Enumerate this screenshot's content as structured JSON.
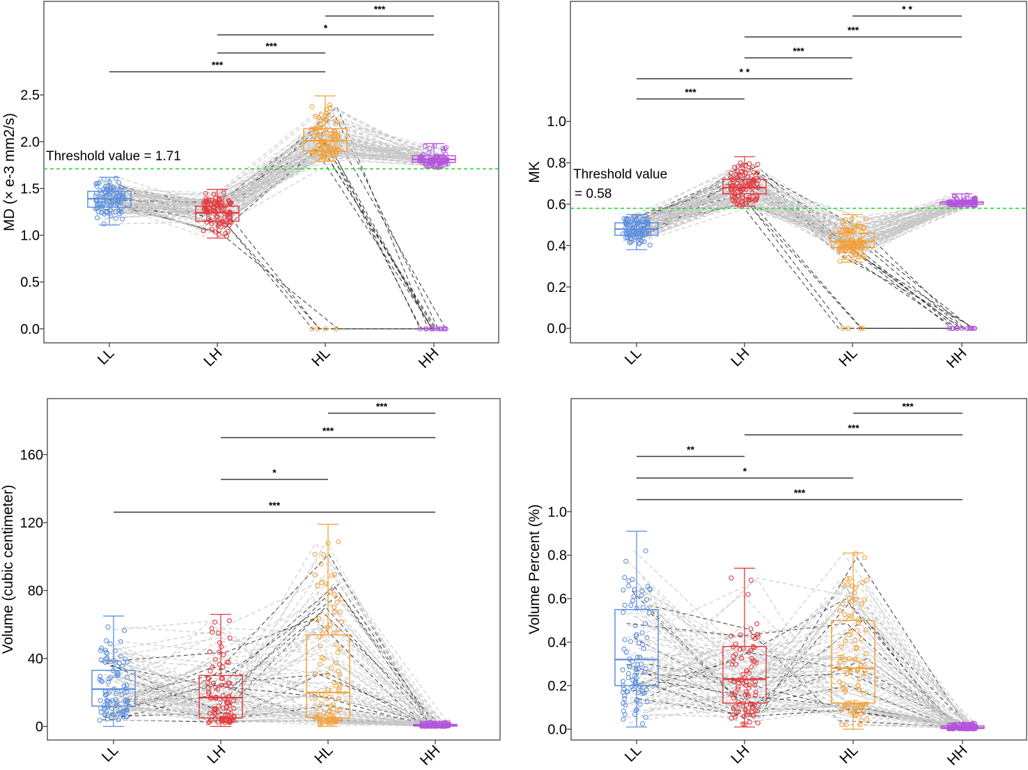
{
  "figure": {
    "description_type": "four-panel paired boxplot figure"
  },
  "colors": {
    "LL": "#5b8fe0",
    "LH": "#e5373c",
    "HL": "#f5a033",
    "HH": "#b455dc",
    "threshold": "#22dd22",
    "grey_line": "#c8c8c8",
    "dark_line": "#222222"
  },
  "chart_data": [
    {
      "id": "md",
      "type": "box",
      "ylabel": "MD (× e-3 mm2/s)",
      "ylim": [
        -0.15,
        3.5
      ],
      "yticks": [
        "0.0",
        "0.5",
        "1.0",
        "1.5",
        "2.0",
        "2.5"
      ],
      "ytick_values": [
        0,
        0.5,
        1.0,
        1.5,
        2.0,
        2.5
      ],
      "categories": [
        "LL",
        "LH",
        "HL",
        "HH"
      ],
      "boxes": [
        {
          "group": "LL",
          "min": 1.11,
          "q1": 1.3,
          "median": 1.39,
          "q3": 1.47,
          "max": 1.62
        },
        {
          "group": "LH",
          "min": 0.97,
          "q1": 1.15,
          "median": 1.24,
          "q3": 1.31,
          "max": 1.49
        },
        {
          "group": "HL",
          "min": 1.79,
          "q1": 1.9,
          "median": 2.01,
          "q3": 2.14,
          "max": 2.49
        },
        {
          "group": "HH",
          "min": 1.72,
          "q1": 1.78,
          "median": 1.81,
          "q3": 1.85,
          "max": 1.98
        }
      ],
      "threshold": {
        "value": 1.71,
        "label_lines": [
          "Threshold value = 1.71"
        ]
      },
      "significance": [
        {
          "from": "LL",
          "to": "HL",
          "label": "***"
        },
        {
          "from": "LH",
          "to": "HL",
          "label": "***"
        },
        {
          "from": "LH",
          "to": "HH",
          "label": "*"
        },
        {
          "from": "HL",
          "to": "HH",
          "label": "***"
        }
      ]
    },
    {
      "id": "mk",
      "type": "box",
      "ylabel": "MK",
      "ylim": [
        -0.07,
        1.58
      ],
      "yticks": [
        "0.0",
        "0.2",
        "0.4",
        "0.6",
        "0.8",
        "1.0"
      ],
      "ytick_values": [
        0,
        0.2,
        0.4,
        0.6,
        0.8,
        1.0
      ],
      "categories": [
        "LL",
        "LH",
        "HL",
        "HH"
      ],
      "boxes": [
        {
          "group": "LL",
          "min": 0.38,
          "q1": 0.45,
          "median": 0.48,
          "q3": 0.51,
          "max": 0.55
        },
        {
          "group": "LH",
          "min": 0.59,
          "q1": 0.65,
          "median": 0.68,
          "q3": 0.72,
          "max": 0.83
        },
        {
          "group": "HL",
          "min": 0.32,
          "q1": 0.39,
          "median": 0.42,
          "q3": 0.46,
          "max": 0.55
        },
        {
          "group": "HH",
          "min": 0.59,
          "q1": 0.6,
          "median": 0.61,
          "q3": 0.61,
          "max": 0.65
        }
      ],
      "threshold": {
        "value": 0.58,
        "label_lines": [
          "Threshold value",
          " = 0.58"
        ]
      },
      "significance": [
        {
          "from": "LL",
          "to": "LH",
          "label": "***"
        },
        {
          "from": "LL",
          "to": "HL",
          "label": "* *"
        },
        {
          "from": "LH",
          "to": "HL",
          "label": "***"
        },
        {
          "from": "LH",
          "to": "HH",
          "label": "***"
        },
        {
          "from": "HL",
          "to": "HH",
          "label": "* *"
        }
      ]
    },
    {
      "id": "vol",
      "type": "box",
      "ylabel": "Volume (cubic centimeter)",
      "ylim": [
        -8,
        193
      ],
      "yticks": [
        "0",
        "40",
        "80",
        "120",
        "160"
      ],
      "ytick_values": [
        0,
        40,
        80,
        120,
        160
      ],
      "categories": [
        "LL",
        "LH",
        "HL",
        "HH"
      ],
      "boxes": [
        {
          "group": "LL",
          "min": 0,
          "q1": 12,
          "median": 22,
          "q3": 33,
          "max": 65
        },
        {
          "group": "LH",
          "min": 0,
          "q1": 5,
          "median": 17,
          "q3": 30,
          "max": 66
        },
        {
          "group": "HL",
          "min": 0,
          "q1": 5,
          "median": 20,
          "q3": 54,
          "max": 119
        },
        {
          "group": "HH",
          "min": 0,
          "q1": 0.2,
          "median": 0.5,
          "q3": 1.2,
          "max": 3
        }
      ],
      "threshold": null,
      "significance": [
        {
          "from": "LL",
          "to": "HH",
          "label": "***"
        },
        {
          "from": "LH",
          "to": "HL",
          "label": "*"
        },
        {
          "from": "LH",
          "to": "HH",
          "label": "***"
        },
        {
          "from": "HL",
          "to": "HH",
          "label": "***"
        }
      ]
    },
    {
      "id": "vpct",
      "type": "box",
      "ylabel": "Volume Percent (%)",
      "ylim": [
        -0.05,
        1.52
      ],
      "yticks": [
        "0.0",
        "0.2",
        "0.4",
        "0.6",
        "0.8",
        "1.0"
      ],
      "ytick_values": [
        0,
        0.2,
        0.4,
        0.6,
        0.8,
        1.0
      ],
      "categories": [
        "LL",
        "LH",
        "HL",
        "HH"
      ],
      "boxes": [
        {
          "group": "LL",
          "min": 0.01,
          "q1": 0.2,
          "median": 0.32,
          "q3": 0.55,
          "max": 0.91
        },
        {
          "group": "LH",
          "min": 0.01,
          "q1": 0.12,
          "median": 0.23,
          "q3": 0.38,
          "max": 0.74
        },
        {
          "group": "HL",
          "min": 0.0,
          "q1": 0.12,
          "median": 0.28,
          "q3": 0.5,
          "max": 0.81
        },
        {
          "group": "HH",
          "min": 0.0,
          "q1": 0.003,
          "median": 0.006,
          "q3": 0.015,
          "max": 0.03
        }
      ],
      "threshold": null,
      "significance": [
        {
          "from": "LL",
          "to": "LH",
          "label": "**"
        },
        {
          "from": "LL",
          "to": "HL",
          "label": "*"
        },
        {
          "from": "LL",
          "to": "HH",
          "label": "***"
        },
        {
          "from": "LH",
          "to": "HH",
          "label": "***"
        },
        {
          "from": "HL",
          "to": "HH",
          "label": "***"
        }
      ]
    }
  ]
}
